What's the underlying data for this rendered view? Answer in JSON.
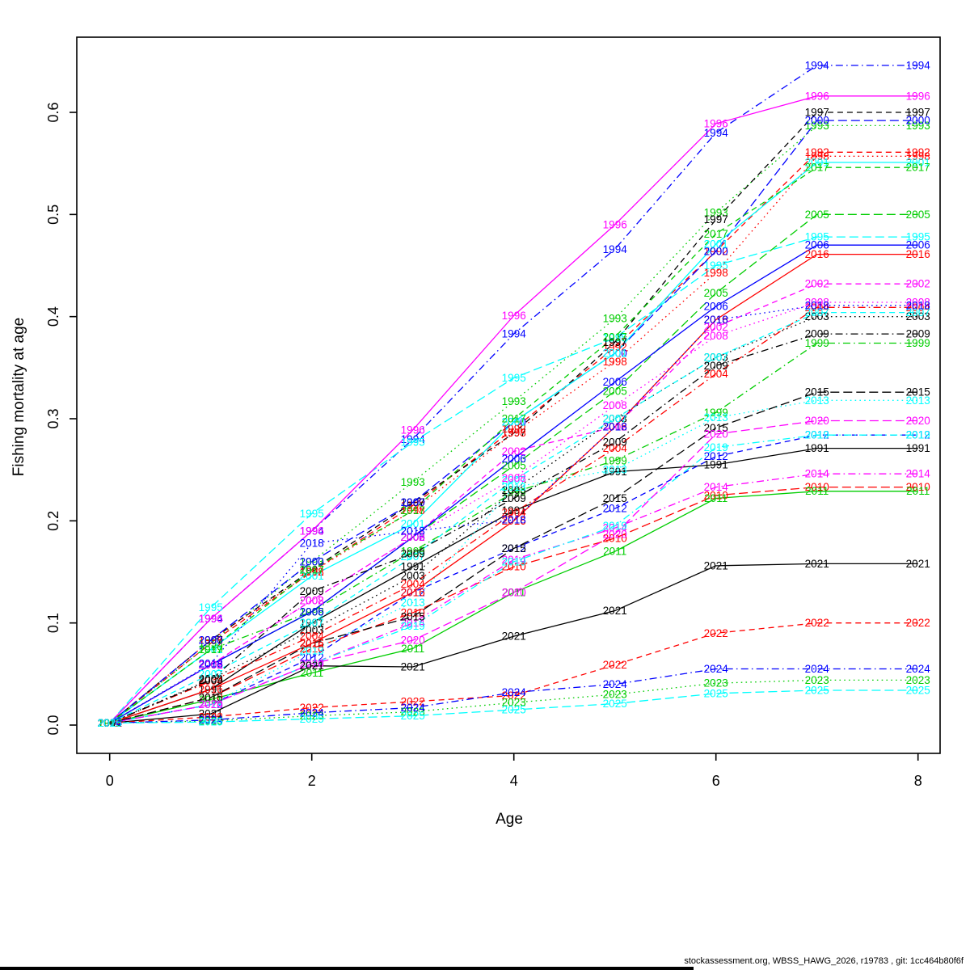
{
  "footer": {
    "text": "stockassessment.org, WBSS_HAWG_2026, r19783 , git: 1cc464b80f6f"
  },
  "chart_data": {
    "type": "line",
    "title": "",
    "xlabel": "Age",
    "ylabel": "Fishing mortality at age",
    "x": [
      0,
      1,
      2,
      3,
      4,
      5,
      6,
      7,
      8
    ],
    "x_tick_labels": [
      "0",
      "2",
      "4",
      "6",
      "8"
    ],
    "x_ticks": [
      0,
      2,
      4,
      6,
      8
    ],
    "y_tick_labels": [
      "0.0",
      "0.1",
      "0.2",
      "0.3",
      "0.4",
      "0.5",
      "0.6"
    ],
    "y_ticks": [
      0.0,
      0.1,
      0.2,
      0.3,
      0.4,
      0.5,
      0.6
    ],
    "xlim": [
      0,
      8
    ],
    "ylim": [
      0.0,
      0.66
    ],
    "grid": false,
    "legend": "labels-on-lines",
    "series": [
      {
        "name": "1991",
        "color": "#000000",
        "linetype": "solid",
        "values": [
          0.002,
          0.035,
          0.1,
          0.155,
          0.21,
          0.248,
          0.255,
          0.271,
          0.271
        ]
      },
      {
        "name": "1992",
        "color": "#FF0000",
        "linetype": "dashed",
        "values": [
          0.002,
          0.08,
          0.15,
          0.215,
          0.29,
          0.37,
          0.464,
          0.561,
          0.561
        ]
      },
      {
        "name": "1993",
        "color": "#00CD00",
        "linetype": "dotted",
        "values": [
          0.002,
          0.08,
          0.16,
          0.238,
          0.317,
          0.398,
          0.502,
          0.587,
          0.587
        ]
      },
      {
        "name": "1994",
        "color": "#0000FF",
        "linetype": "dotdash",
        "values": [
          0.002,
          0.104,
          0.19,
          0.28,
          0.383,
          0.466,
          0.58,
          0.646,
          0.646
        ]
      },
      {
        "name": "1995",
        "color": "#00FFFF",
        "linetype": "longdash",
        "values": [
          0.002,
          0.115,
          0.207,
          0.277,
          0.34,
          0.379,
          0.45,
          0.478,
          0.478
        ]
      },
      {
        "name": "1996",
        "color": "#FF00FF",
        "linetype": "solid",
        "values": [
          0.002,
          0.104,
          0.19,
          0.289,
          0.401,
          0.49,
          0.589,
          0.616,
          0.616
        ]
      },
      {
        "name": "1997",
        "color": "#000000",
        "linetype": "dashed",
        "values": [
          0.002,
          0.083,
          0.152,
          0.218,
          0.286,
          0.375,
          0.495,
          0.6,
          0.6
        ]
      },
      {
        "name": "1998",
        "color": "#FF0000",
        "linetype": "dotted",
        "values": [
          0.002,
          0.083,
          0.15,
          0.21,
          0.286,
          0.356,
          0.443,
          0.557,
          0.557
        ]
      },
      {
        "name": "1999",
        "color": "#00CD00",
        "linetype": "dotdash",
        "values": [
          0.002,
          0.074,
          0.111,
          0.17,
          0.228,
          0.259,
          0.306,
          0.374,
          0.374
        ]
      },
      {
        "name": "2000",
        "color": "#0000FF",
        "linetype": "longdash",
        "values": [
          0.002,
          0.083,
          0.16,
          0.218,
          0.297,
          0.364,
          0.464,
          0.592,
          0.592
        ]
      },
      {
        "name": "2001",
        "color": "#00FFFF",
        "linetype": "solid",
        "values": [
          0.002,
          0.074,
          0.146,
          0.197,
          0.297,
          0.364,
          0.471,
          0.551,
          0.551
        ]
      },
      {
        "name": "2002",
        "color": "#FF00FF",
        "linetype": "dashed",
        "values": [
          0.002,
          0.059,
          0.122,
          0.184,
          0.268,
          0.292,
          0.39,
          0.432,
          0.432
        ]
      },
      {
        "name": "2003",
        "color": "#000000",
        "linetype": "dotted",
        "values": [
          0.002,
          0.045,
          0.093,
          0.146,
          0.23,
          0.3,
          0.36,
          0.4,
          0.4
        ]
      },
      {
        "name": "2004",
        "color": "#FF0000",
        "linetype": "dotdash",
        "values": [
          0.002,
          0.043,
          0.087,
          0.138,
          0.208,
          0.271,
          0.344,
          0.409,
          0.409
        ]
      },
      {
        "name": "2005",
        "color": "#00CD00",
        "linetype": "longdash",
        "values": [
          0.002,
          0.059,
          0.111,
          0.184,
          0.254,
          0.327,
          0.423,
          0.5,
          0.5
        ]
      },
      {
        "name": "2006",
        "color": "#0000FF",
        "linetype": "solid",
        "values": [
          0.002,
          0.059,
          0.111,
          0.184,
          0.261,
          0.336,
          0.41,
          0.47,
          0.47
        ]
      },
      {
        "name": "2007",
        "color": "#00FFFF",
        "linetype": "dashed",
        "values": [
          0.002,
          0.05,
          0.1,
          0.165,
          0.24,
          0.3,
          0.36,
          0.404,
          0.404
        ]
      },
      {
        "name": "2008",
        "color": "#FF00FF",
        "linetype": "dotted",
        "values": [
          0.002,
          0.059,
          0.122,
          0.184,
          0.242,
          0.313,
          0.381,
          0.414,
          0.414
        ]
      },
      {
        "name": "2009",
        "color": "#000000",
        "linetype": "dotdash",
        "values": [
          0.002,
          0.044,
          0.131,
          0.168,
          0.222,
          0.277,
          0.352,
          0.383,
          0.383
        ]
      },
      {
        "name": "2010",
        "color": "#FF0000",
        "linetype": "longdash",
        "values": [
          0.002,
          0.027,
          0.075,
          0.11,
          0.155,
          0.183,
          0.225,
          0.233,
          0.233
        ]
      },
      {
        "name": "2011",
        "color": "#00CD00",
        "linetype": "solid",
        "values": [
          0.002,
          0.025,
          0.051,
          0.075,
          0.13,
          0.17,
          0.222,
          0.229,
          0.229
        ]
      },
      {
        "name": "2012",
        "color": "#0000FF",
        "linetype": "dashed",
        "values": [
          0.002,
          0.02,
          0.066,
          0.13,
          0.173,
          0.212,
          0.263,
          0.284,
          0.284
        ]
      },
      {
        "name": "2013",
        "color": "#00FFFF",
        "linetype": "dotted",
        "values": [
          0.002,
          0.02,
          0.073,
          0.12,
          0.233,
          0.25,
          0.301,
          0.318,
          0.318
        ]
      },
      {
        "name": "2014",
        "color": "#FF00FF",
        "linetype": "dotdash",
        "values": [
          0.002,
          0.02,
          0.06,
          0.1,
          0.162,
          0.193,
          0.233,
          0.246,
          0.246
        ]
      },
      {
        "name": "2015",
        "color": "#000000",
        "linetype": "longdash",
        "values": [
          0.002,
          0.027,
          0.08,
          0.106,
          0.173,
          0.222,
          0.291,
          0.326,
          0.326
        ]
      },
      {
        "name": "2016",
        "color": "#FF0000",
        "linetype": "solid",
        "values": [
          0.002,
          0.035,
          0.08,
          0.13,
          0.2,
          0.292,
          0.397,
          0.461,
          0.461
        ]
      },
      {
        "name": "2017",
        "color": "#00CD00",
        "linetype": "dashed",
        "values": [
          0.002,
          0.074,
          0.152,
          0.21,
          0.3,
          0.38,
          0.481,
          0.546,
          0.546
        ]
      },
      {
        "name": "2018",
        "color": "#0000FF",
        "linetype": "dotted",
        "values": [
          0.002,
          0.06,
          0.178,
          0.19,
          0.201,
          0.292,
          0.397,
          0.411,
          0.411
        ]
      },
      {
        "name": "2019",
        "color": "#00FFFF",
        "linetype": "dotdash",
        "values": [
          0.002,
          0.02,
          0.06,
          0.097,
          0.16,
          0.195,
          0.272,
          0.284,
          0.284
        ]
      },
      {
        "name": "2020",
        "color": "#FF00FF",
        "linetype": "longdash",
        "values": [
          0.002,
          0.02,
          0.06,
          0.083,
          0.13,
          0.187,
          0.285,
          0.298,
          0.298
        ]
      },
      {
        "name": "2021",
        "color": "#000000",
        "linetype": "solid",
        "values": [
          0.002,
          0.011,
          0.058,
          0.057,
          0.087,
          0.112,
          0.156,
          0.158,
          0.158
        ]
      },
      {
        "name": "2022",
        "color": "#FF0000",
        "linetype": "dashed",
        "values": [
          0.002,
          0.008,
          0.017,
          0.023,
          0.029,
          0.059,
          0.09,
          0.1,
          0.1
        ]
      },
      {
        "name": "2023",
        "color": "#00CD00",
        "linetype": "dotted",
        "values": [
          0.002,
          0.004,
          0.009,
          0.013,
          0.022,
          0.03,
          0.041,
          0.044,
          0.044
        ]
      },
      {
        "name": "2024",
        "color": "#0000FF",
        "linetype": "dotdash",
        "values": [
          0.002,
          0.005,
          0.012,
          0.017,
          0.032,
          0.04,
          0.055,
          0.055,
          0.055
        ]
      },
      {
        "name": "2025",
        "color": "#00FFFF",
        "linetype": "longdash",
        "values": [
          0.002,
          0.003,
          0.006,
          0.009,
          0.015,
          0.021,
          0.031,
          0.034,
          0.034
        ]
      }
    ]
  }
}
